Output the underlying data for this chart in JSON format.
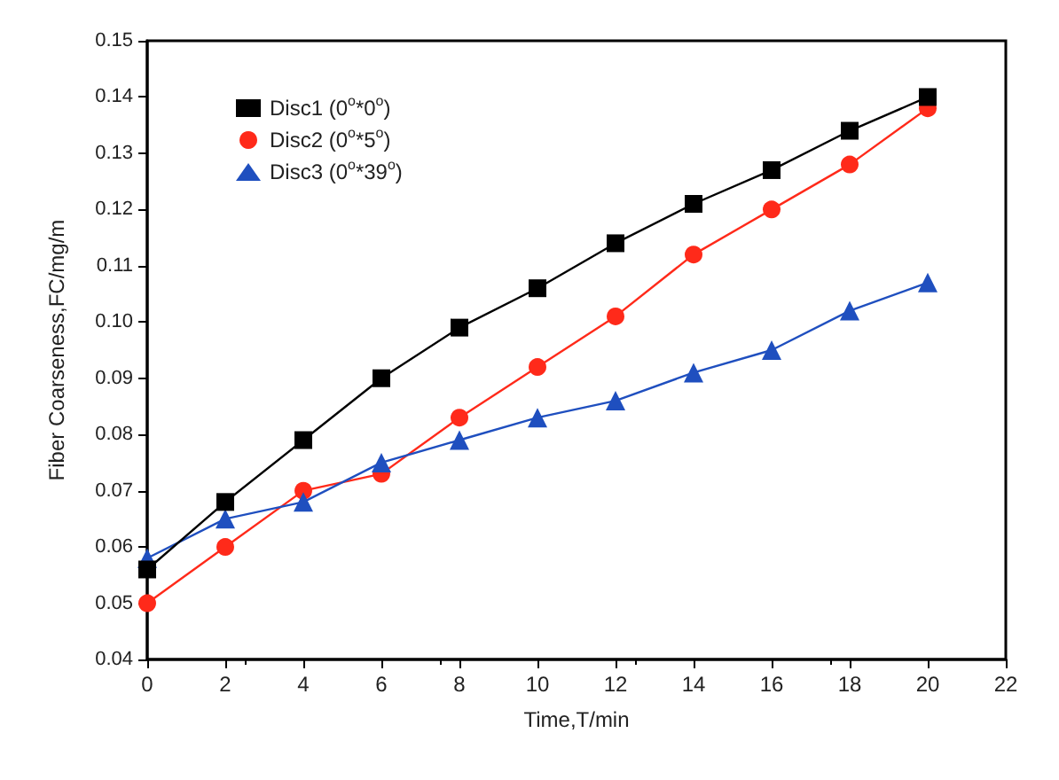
{
  "chart_data": {
    "type": "line",
    "xlabel": "Time,T/min",
    "ylabel": "Fiber Coarseness,FC/mg/m",
    "x": [
      0,
      2,
      4,
      6,
      8,
      10,
      12,
      14,
      16,
      18,
      20
    ],
    "series": [
      {
        "name": "Disc1 (0$^{o}$*0$^{o}$)",
        "color": "#000000",
        "marker": "square",
        "values": [
          0.056,
          0.068,
          0.079,
          0.09,
          0.099,
          0.106,
          0.114,
          0.121,
          0.127,
          0.134,
          0.14
        ]
      },
      {
        "name": "Disc2 (0$^{o}$*5$^{o}$)",
        "color": "#ff2a1a",
        "marker": "circle",
        "values": [
          0.05,
          0.06,
          0.07,
          0.073,
          0.083,
          0.092,
          0.101,
          0.112,
          0.12,
          0.128,
          0.138
        ]
      },
      {
        "name": "Disc3 (0$^{o}$*39$^{o}$)",
        "color": "#1f4fbf",
        "marker": "triangle",
        "values": [
          0.058,
          0.065,
          0.068,
          0.075,
          0.079,
          0.083,
          0.086,
          0.091,
          0.095,
          0.102,
          0.107
        ]
      }
    ],
    "xlim": [
      0,
      22
    ],
    "xticks": [
      0,
      2,
      4,
      6,
      8,
      10,
      12,
      14,
      16,
      18,
      20,
      22
    ],
    "ylim": [
      0.04,
      0.15
    ],
    "yticks": [
      {
        "value": 0.04,
        "label": "0.04"
      },
      {
        "value": 0.05,
        "label": "0.05"
      },
      {
        "value": 0.06,
        "label": "0.06"
      },
      {
        "value": 0.07,
        "label": "0.07"
      },
      {
        "value": 0.08,
        "label": "0.08"
      },
      {
        "value": 0.09,
        "label": "0.09"
      },
      {
        "value": 0.1,
        "label": "0.10"
      },
      {
        "value": 0.11,
        "label": "0.11"
      },
      {
        "value": 0.12,
        "label": "0.12"
      },
      {
        "value": 0.13,
        "label": "0.13"
      },
      {
        "value": 0.14,
        "label": "0.14"
      },
      {
        "value": 0.15,
        "label": "0.15"
      }
    ],
    "grid": false,
    "legend": "top left",
    "line_style": "solid"
  }
}
